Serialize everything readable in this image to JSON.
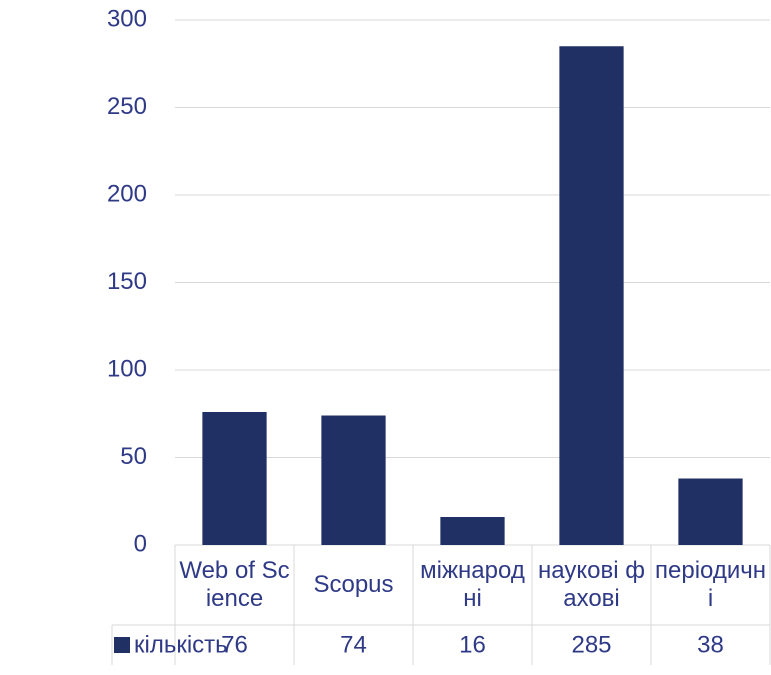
{
  "chart_data": {
    "type": "bar",
    "categories": [
      "Web of Science",
      "Scopus",
      "міжнародні",
      "наукові фахові",
      "періодичні"
    ],
    "series": [
      {
        "name": "кількість",
        "color": "#203064",
        "values": [
          76,
          74,
          16,
          285,
          38
        ]
      }
    ],
    "ylim": [
      0,
      300
    ],
    "yticks": [
      0,
      50,
      100,
      150,
      200,
      250,
      300
    ],
    "grid": true,
    "data_table": true
  }
}
